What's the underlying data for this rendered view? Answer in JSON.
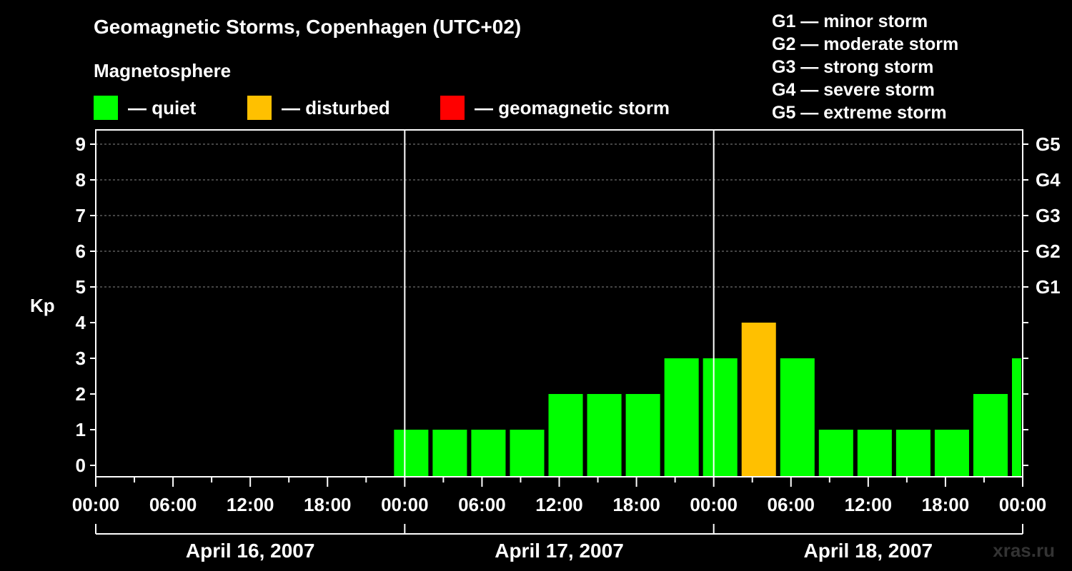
{
  "header": {
    "title": "Geomagnetic Storms, Copenhagen (UTC+02)",
    "subtitle": "Magnetosphere"
  },
  "legend": [
    {
      "color": "#00ff00",
      "label": "— quiet"
    },
    {
      "color": "#ffc000",
      "label": "— disturbed"
    },
    {
      "color": "#ff0000",
      "label": "— geomagnetic storm"
    }
  ],
  "g_scale": [
    "G1 — minor storm",
    "G2 — moderate storm",
    "G3 — strong storm",
    "G4 — severe storm",
    "G5 — extreme storm"
  ],
  "watermark": "xras.ru",
  "colors": {
    "quiet": "#00ff00",
    "disturbed": "#ffc000",
    "storm": "#ff0000",
    "background": "#000000",
    "axis": "#ffffff"
  },
  "chart_data": {
    "type": "bar",
    "ylabel": "Kp",
    "ylim": [
      0,
      9
    ],
    "yticks": [
      "0",
      "1",
      "2",
      "3",
      "4",
      "5",
      "6",
      "7",
      "8",
      "9"
    ],
    "right_labels": [
      {
        "kp": 5,
        "label": "G1"
      },
      {
        "kp": 6,
        "label": "G2"
      },
      {
        "kp": 7,
        "label": "G3"
      },
      {
        "kp": 8,
        "label": "G4"
      },
      {
        "kp": 9,
        "label": "G5"
      }
    ],
    "x_ticks": [
      "00:00",
      "06:00",
      "12:00",
      "18:00",
      "00:00",
      "06:00",
      "12:00",
      "18:00",
      "00:00",
      "06:00",
      "12:00",
      "18:00",
      "00:00"
    ],
    "days": [
      "April 16, 2007",
      "April 17, 2007",
      "April 18, 2007"
    ],
    "bar_interval_hours": 3,
    "bars": [
      {
        "start": "2007-04-17 00:00",
        "kp": 1,
        "status": "quiet"
      },
      {
        "start": "2007-04-17 03:00",
        "kp": 1,
        "status": "quiet"
      },
      {
        "start": "2007-04-17 06:00",
        "kp": 1,
        "status": "quiet"
      },
      {
        "start": "2007-04-17 09:00",
        "kp": 1,
        "status": "quiet"
      },
      {
        "start": "2007-04-17 12:00",
        "kp": 2,
        "status": "quiet"
      },
      {
        "start": "2007-04-17 15:00",
        "kp": 2,
        "status": "quiet"
      },
      {
        "start": "2007-04-17 18:00",
        "kp": 2,
        "status": "quiet"
      },
      {
        "start": "2007-04-17 21:00",
        "kp": 3,
        "status": "quiet"
      },
      {
        "start": "2007-04-18 00:00",
        "kp": 3,
        "status": "quiet"
      },
      {
        "start": "2007-04-18 03:00",
        "kp": 4,
        "status": "disturbed"
      },
      {
        "start": "2007-04-18 06:00",
        "kp": 3,
        "status": "quiet"
      },
      {
        "start": "2007-04-18 09:00",
        "kp": 1,
        "status": "quiet"
      },
      {
        "start": "2007-04-18 12:00",
        "kp": 1,
        "status": "quiet"
      },
      {
        "start": "2007-04-18 15:00",
        "kp": 1,
        "status": "quiet"
      },
      {
        "start": "2007-04-18 18:00",
        "kp": 1,
        "status": "quiet"
      },
      {
        "start": "2007-04-18 21:00",
        "kp": 2,
        "status": "quiet"
      },
      {
        "start": "2007-04-19 00:00",
        "kp": 3,
        "status": "quiet"
      }
    ],
    "grid": "dashed horizontal at Kp 5-9",
    "legend_position": "top"
  }
}
